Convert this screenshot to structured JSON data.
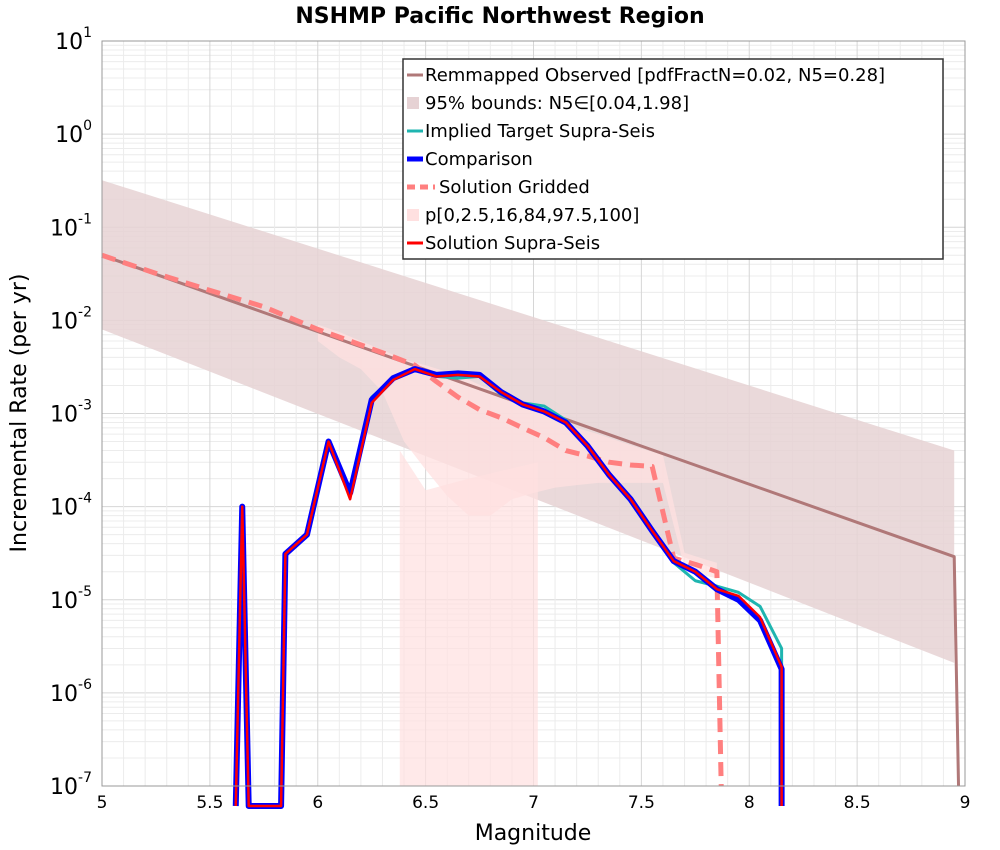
{
  "chart_data": {
    "type": "line",
    "title": "NSHMP Pacific Northwest Region",
    "xlabel": "Magnitude",
    "ylabel": "Incremental Rate (per yr)",
    "xlim": [
      5,
      9
    ],
    "ylim": [
      1e-07,
      10
    ],
    "yscale": "log",
    "grid": true,
    "legend_position": "top-right",
    "xticks": [
      "5",
      "5.5",
      "6",
      "6.5",
      "7",
      "7.5",
      "8",
      "8.5",
      "9"
    ],
    "yticks": [
      {
        "base": "10",
        "exp": "1"
      },
      {
        "base": "10",
        "exp": "0"
      },
      {
        "base": "10",
        "exp": "-1"
      },
      {
        "base": "10",
        "exp": "-2"
      },
      {
        "base": "10",
        "exp": "-3"
      },
      {
        "base": "10",
        "exp": "-4"
      },
      {
        "base": "10",
        "exp": "-5"
      },
      {
        "base": "10",
        "exp": "-6"
      },
      {
        "base": "10",
        "exp": "-7"
      }
    ],
    "colors": {
      "observed": "#b07878",
      "bounds_fill": "#e6d2d4",
      "implied": "#1fb5b0",
      "comparison": "#0000ff",
      "gridded": "#ff7f7f",
      "percentile_fill": "#ffe0e0",
      "solution": "#ff0000"
    },
    "series": [
      {
        "name": "Remmapped Observed [pdfFractN=0.02, N5=0.28]",
        "x": [
          5.0,
          8.95,
          8.97
        ],
        "y": [
          0.05,
          2.9e-05,
          1e-07
        ]
      },
      {
        "name": "95% bounds: N5∈[0.04,1.98]",
        "x": [
          5.0,
          8.95
        ],
        "lower": [
          0.008,
          2.1e-06
        ],
        "upper": [
          0.32,
          0.0004
        ]
      },
      {
        "name": "Implied Target Supra-Seis",
        "x": [
          5.65,
          5.85,
          5.95,
          6.05,
          6.15,
          6.25,
          6.35,
          6.45,
          6.55,
          6.65,
          6.75,
          6.85,
          6.95,
          7.05,
          7.15,
          7.25,
          7.35,
          7.45,
          7.55,
          7.65,
          7.75,
          7.85,
          7.95,
          8.05,
          8.15
        ],
        "y": [
          0.0001,
          3.1e-05,
          5e-05,
          0.0005,
          0.00013,
          0.0015,
          0.0024,
          0.003,
          0.0025,
          0.0024,
          0.0025,
          0.0016,
          0.0013,
          0.0012,
          0.00085,
          0.00045,
          0.00022,
          0.00012,
          5.5e-05,
          2.5e-05,
          1.6e-05,
          1.4e-05,
          1.2e-05,
          8.5e-06,
          3e-06
        ]
      },
      {
        "name": "Comparison",
        "x": [
          5.65,
          5.85,
          5.95,
          6.05,
          6.15,
          6.25,
          6.35,
          6.45,
          6.55,
          6.65,
          6.75,
          6.85,
          6.95,
          7.05,
          7.15,
          7.25,
          7.35,
          7.45,
          7.55,
          7.65,
          7.75,
          7.85,
          7.95,
          8.05,
          8.15
        ],
        "y": [
          0.0001,
          3.1e-05,
          5e-05,
          0.0005,
          0.00014,
          0.0014,
          0.0024,
          0.003,
          0.0026,
          0.0027,
          0.0026,
          0.0017,
          0.00125,
          0.00105,
          0.0008,
          0.00045,
          0.00022,
          0.00012,
          5.5e-05,
          2.6e-05,
          2e-05,
          1.3e-05,
          1e-05,
          6e-06,
          1.8e-06
        ]
      },
      {
        "name": "Solution Gridded",
        "x": [
          5.0,
          5.25,
          5.5,
          5.75,
          6.0,
          6.15,
          6.3,
          6.45,
          6.55,
          6.65,
          6.75,
          6.85,
          6.95,
          7.05,
          7.15,
          7.25,
          7.35,
          7.45,
          7.55,
          7.65,
          7.75,
          7.85,
          7.87
        ],
        "y": [
          0.05,
          0.032,
          0.021,
          0.014,
          0.008,
          0.006,
          0.0045,
          0.0033,
          0.0022,
          0.0015,
          0.0011,
          0.0009,
          0.0007,
          0.00055,
          0.0004,
          0.00035,
          0.0003,
          0.00028,
          0.00027,
          2.8e-05,
          2.4e-05,
          2e-05,
          1e-07
        ]
      },
      {
        "name": "p[0,2.5,16,84,97.5,100]",
        "x": [
          6.0,
          6.1,
          6.2,
          6.3,
          6.4,
          6.5,
          6.6,
          6.7,
          6.8,
          6.9,
          7.0,
          7.1,
          7.2,
          7.3,
          7.4,
          7.5,
          7.6,
          7.7,
          7.8,
          7.85
        ],
        "lower": [
          0.006,
          0.004,
          0.003,
          0.0017,
          0.0005,
          0.00025,
          0.00013,
          8e-05,
          8e-05,
          0.00012,
          0.00014,
          0.00016,
          0.00017,
          0.00018,
          0.00018,
          0.00018,
          0.00018,
          2.2e-05,
          1.8e-05,
          1.7e-05
        ],
        "upper": [
          0.009,
          0.0075,
          0.006,
          0.0048,
          0.0038,
          0.0033,
          0.0028,
          0.0023,
          0.0018,
          0.0014,
          0.0011,
          0.0009,
          0.0007,
          0.0006,
          0.0005,
          0.00042,
          0.00036,
          3.2e-05,
          2.7e-05,
          2.5e-05
        ]
      },
      {
        "name": "Solution Supra-Seis",
        "x": [
          5.65,
          5.85,
          5.95,
          6.05,
          6.15,
          6.25,
          6.35,
          6.45,
          6.55,
          6.65,
          6.75,
          6.85,
          6.95,
          7.05,
          7.15,
          7.25,
          7.35,
          7.45,
          7.55,
          7.65,
          7.75,
          7.85,
          7.95,
          8.05,
          8.15
        ],
        "y": [
          0.0001,
          3.1e-05,
          5e-05,
          0.0005,
          0.00012,
          0.0013,
          0.0023,
          0.003,
          0.0025,
          0.0026,
          0.0025,
          0.0017,
          0.00125,
          0.00105,
          0.0008,
          0.00045,
          0.00022,
          0.00012,
          5.5e-05,
          2.6e-05,
          2e-05,
          1.3e-05,
          1.1e-05,
          6.5e-06,
          1.9e-06
        ]
      }
    ]
  }
}
